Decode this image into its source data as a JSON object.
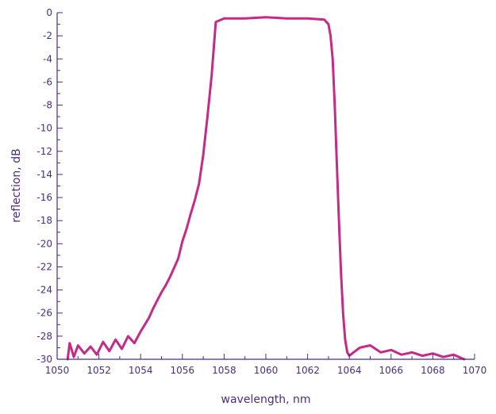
{
  "chart_data": {
    "type": "line",
    "xlabel": "wavelength, nm",
    "ylabel": "reflection, dB",
    "xlim": [
      1050,
      1070
    ],
    "ylim": [
      -30,
      0
    ],
    "x_ticks": [
      "1050",
      "1052",
      "1054",
      "1056",
      "1058",
      "1060",
      "1062",
      "1064",
      "1066",
      "1068",
      "1070"
    ],
    "y_ticks": [
      "0",
      "-2",
      "-4",
      "-6",
      "-8",
      "-10",
      "-12",
      "-14",
      "-16",
      "-18",
      "-20",
      "-22",
      "-24",
      "-26",
      "-28",
      "-30"
    ],
    "grid": false,
    "colors": {
      "axis": "#4b2d7f",
      "series": "#c42a86"
    },
    "series": [
      {
        "x": [
          1050.5,
          1050.6,
          1050.8,
          1051.0,
          1051.3,
          1051.6,
          1051.9,
          1052.2,
          1052.5,
          1052.8,
          1053.1,
          1053.4,
          1053.7,
          1054.0,
          1054.2,
          1054.4,
          1054.6,
          1054.8,
          1055.0,
          1055.2,
          1055.4,
          1055.6,
          1055.8,
          1056.0,
          1056.2,
          1056.4,
          1056.6,
          1056.8,
          1057.0,
          1057.2,
          1057.4,
          1057.6,
          1058.0,
          1059.0,
          1060.0,
          1061.0,
          1062.0,
          1062.8,
          1063.0,
          1063.1,
          1063.2,
          1063.3,
          1063.4,
          1063.5,
          1063.6,
          1063.7,
          1063.8,
          1063.9,
          1064.0,
          1064.2,
          1064.5,
          1065.0,
          1065.5,
          1066.0,
          1066.5,
          1067.0,
          1067.5,
          1068.0,
          1068.5,
          1069.0,
          1069.5
        ],
        "y": [
          -30.0,
          -28.6,
          -29.8,
          -28.8,
          -29.5,
          -28.9,
          -29.6,
          -28.5,
          -29.3,
          -28.3,
          -29.1,
          -28.0,
          -28.6,
          -27.6,
          -27.0,
          -26.4,
          -25.6,
          -24.9,
          -24.2,
          -23.6,
          -22.9,
          -22.1,
          -21.3,
          -19.8,
          -18.7,
          -17.4,
          -16.2,
          -14.8,
          -12.3,
          -9.0,
          -5.5,
          -0.8,
          -0.5,
          -0.5,
          -0.4,
          -0.5,
          -0.5,
          -0.6,
          -1.0,
          -2.0,
          -4.0,
          -8.0,
          -13.0,
          -18.0,
          -22.5,
          -26.0,
          -28.3,
          -29.4,
          -29.7,
          -29.4,
          -29.0,
          -28.8,
          -29.4,
          -29.2,
          -29.6,
          -29.4,
          -29.7,
          -29.5,
          -29.8,
          -29.6,
          -30.0
        ]
      }
    ]
  }
}
